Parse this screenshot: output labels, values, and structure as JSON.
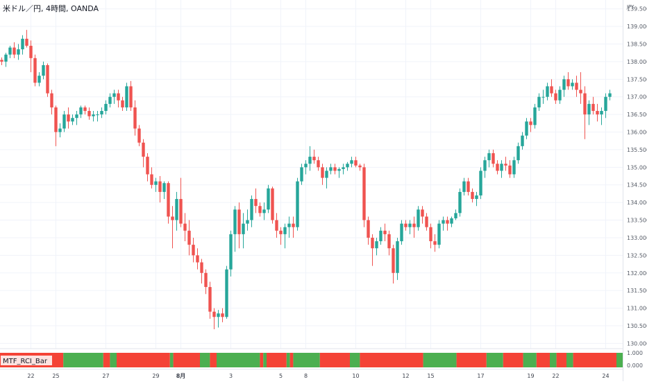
{
  "chart_data": {
    "type": "candlestick",
    "title": "米ドル／円, 4時間, OANDA",
    "currency": "JPY",
    "y_ticks": [
      "139.500",
      "139.000",
      "138.500",
      "138.000",
      "137.500",
      "137.000",
      "136.500",
      "136.000",
      "135.500",
      "135.000",
      "134.500",
      "134.000",
      "133.500",
      "133.000",
      "132.500",
      "132.000",
      "131.500",
      "131.000",
      "130.500",
      "130.000"
    ],
    "ylim": [
      129.85,
      139.75
    ],
    "x_ticks": [
      {
        "label": "22",
        "index": 7,
        "bold": false
      },
      {
        "label": "25",
        "index": 13,
        "bold": false
      },
      {
        "label": "27",
        "index": 25,
        "bold": false
      },
      {
        "label": "29",
        "index": 37,
        "bold": false
      },
      {
        "label": "8月",
        "index": 43,
        "bold": true
      },
      {
        "label": "3",
        "index": 55,
        "bold": false
      },
      {
        "label": "5",
        "index": 67,
        "bold": false
      },
      {
        "label": "8",
        "index": 73,
        "bold": false
      },
      {
        "label": "10",
        "index": 85,
        "bold": false
      },
      {
        "label": "12",
        "index": 97,
        "bold": false
      },
      {
        "label": "15",
        "index": 103,
        "bold": false
      },
      {
        "label": "17",
        "index": 115,
        "bold": false
      },
      {
        "label": "19",
        "index": 127,
        "bold": false
      },
      {
        "label": "22",
        "index": 133,
        "bold": false
      },
      {
        "label": "24",
        "index": 145,
        "bold": false
      }
    ],
    "colors": {
      "up": "#26a69a",
      "down": "#ef5350",
      "ind_up": "#4caf50",
      "ind_down": "#f44336",
      "grid": "#f0f3fa",
      "text": "#131722"
    },
    "candles": [
      [
        138.05,
        138.12,
        137.9,
        138.0
      ],
      [
        138.0,
        138.25,
        137.85,
        138.2
      ],
      [
        138.2,
        138.45,
        138.1,
        138.4
      ],
      [
        138.4,
        138.55,
        138.1,
        138.2
      ],
      [
        138.2,
        138.5,
        138.05,
        138.35
      ],
      [
        138.35,
        138.75,
        138.2,
        138.65
      ],
      [
        138.65,
        138.9,
        138.4,
        138.45
      ],
      [
        138.45,
        138.6,
        137.7,
        138.1
      ],
      [
        138.1,
        138.2,
        137.3,
        137.4
      ],
      [
        137.4,
        137.7,
        137.3,
        137.6
      ],
      [
        137.6,
        138.0,
        137.5,
        137.9
      ],
      [
        137.9,
        137.95,
        137.0,
        137.1
      ],
      [
        137.1,
        137.2,
        136.5,
        136.7
      ],
      [
        136.7,
        136.75,
        135.6,
        136.0
      ],
      [
        136.0,
        136.25,
        135.85,
        136.1
      ],
      [
        136.1,
        136.6,
        136.0,
        136.5
      ],
      [
        136.5,
        136.7,
        136.1,
        136.3
      ],
      [
        136.3,
        136.5,
        136.2,
        136.4
      ],
      [
        136.4,
        136.6,
        136.2,
        136.5
      ],
      [
        136.5,
        136.75,
        136.4,
        136.7
      ],
      [
        136.7,
        136.75,
        136.5,
        136.6
      ],
      [
        136.6,
        136.7,
        136.35,
        136.45
      ],
      [
        136.45,
        136.6,
        136.3,
        136.5
      ],
      [
        136.5,
        136.6,
        136.3,
        136.5
      ],
      [
        136.5,
        136.7,
        136.4,
        136.6
      ],
      [
        136.6,
        136.9,
        136.5,
        136.8
      ],
      [
        136.8,
        137.1,
        136.7,
        137.0
      ],
      [
        137.0,
        137.2,
        136.8,
        137.1
      ],
      [
        137.1,
        137.2,
        136.7,
        136.9
      ],
      [
        136.9,
        137.0,
        136.6,
        136.7
      ],
      [
        136.7,
        137.4,
        136.6,
        137.3
      ],
      [
        137.3,
        137.45,
        136.6,
        136.7
      ],
      [
        136.7,
        136.9,
        135.9,
        136.1
      ],
      [
        136.1,
        136.2,
        135.6,
        135.7
      ],
      [
        135.7,
        135.8,
        135.0,
        135.3
      ],
      [
        135.3,
        135.4,
        134.6,
        134.8
      ],
      [
        134.8,
        135.0,
        134.4,
        134.5
      ],
      [
        134.5,
        134.7,
        134.3,
        134.6
      ],
      [
        134.6,
        134.75,
        134.0,
        134.3
      ],
      [
        134.3,
        134.6,
        134.1,
        134.55
      ],
      [
        134.55,
        134.6,
        133.4,
        133.6
      ],
      [
        133.6,
        133.9,
        132.7,
        133.5
      ],
      [
        133.5,
        134.3,
        133.2,
        134.1
      ],
      [
        134.1,
        134.7,
        133.3,
        133.4
      ],
      [
        133.4,
        133.7,
        132.9,
        133.2
      ],
      [
        133.2,
        133.5,
        132.5,
        132.8
      ],
      [
        132.8,
        133.0,
        132.3,
        132.5
      ],
      [
        132.5,
        132.7,
        132.1,
        132.3
      ],
      [
        132.3,
        132.4,
        131.7,
        132.0
      ],
      [
        132.0,
        132.1,
        131.4,
        131.6
      ],
      [
        131.6,
        131.75,
        130.7,
        130.9
      ],
      [
        130.9,
        131.0,
        130.4,
        130.75
      ],
      [
        130.75,
        130.95,
        130.45,
        130.85
      ],
      [
        130.85,
        131.0,
        130.6,
        130.75
      ],
      [
        130.75,
        132.2,
        130.7,
        132.1
      ],
      [
        132.1,
        133.2,
        131.9,
        133.1
      ],
      [
        133.1,
        133.9,
        132.6,
        133.8
      ],
      [
        133.8,
        134.0,
        132.7,
        133.1
      ],
      [
        133.1,
        133.7,
        132.7,
        133.4
      ],
      [
        133.4,
        133.8,
        133.2,
        133.5
      ],
      [
        133.5,
        134.2,
        133.3,
        134.1
      ],
      [
        134.1,
        134.4,
        133.7,
        133.9
      ],
      [
        133.9,
        134.0,
        133.6,
        133.7
      ],
      [
        133.7,
        134.0,
        133.5,
        133.8
      ],
      [
        133.8,
        134.5,
        133.7,
        134.4
      ],
      [
        134.4,
        134.45,
        133.4,
        133.5
      ],
      [
        133.5,
        133.7,
        133.0,
        133.2
      ],
      [
        133.2,
        133.3,
        132.8,
        133.1
      ],
      [
        133.1,
        133.4,
        132.7,
        133.3
      ],
      [
        133.3,
        133.6,
        133.0,
        133.4
      ],
      [
        133.4,
        133.6,
        133.0,
        133.3
      ],
      [
        133.3,
        134.7,
        133.2,
        134.6
      ],
      [
        134.6,
        135.1,
        134.5,
        135.0
      ],
      [
        135.0,
        135.2,
        134.8,
        135.1
      ],
      [
        135.1,
        135.6,
        134.9,
        135.3
      ],
      [
        135.3,
        135.5,
        135.1,
        135.2
      ],
      [
        135.2,
        135.3,
        134.9,
        135.0
      ],
      [
        135.0,
        135.1,
        134.5,
        134.7
      ],
      [
        134.7,
        135.0,
        134.4,
        134.9
      ],
      [
        134.9,
        135.1,
        134.8,
        135.0
      ],
      [
        135.0,
        135.1,
        134.8,
        134.9
      ],
      [
        134.9,
        135.0,
        134.7,
        134.95
      ],
      [
        134.95,
        135.1,
        134.8,
        135.0
      ],
      [
        135.0,
        135.15,
        134.9,
        135.1
      ],
      [
        135.1,
        135.3,
        135.0,
        135.2
      ],
      [
        135.2,
        135.3,
        135.0,
        135.05
      ],
      [
        135.05,
        135.1,
        134.9,
        135.0
      ],
      [
        135.0,
        135.1,
        133.3,
        133.5
      ],
      [
        133.5,
        133.6,
        132.8,
        133.0
      ],
      [
        133.0,
        133.1,
        132.2,
        132.7
      ],
      [
        132.7,
        133.0,
        132.5,
        132.9
      ],
      [
        132.9,
        133.3,
        132.8,
        133.2
      ],
      [
        133.2,
        133.4,
        132.9,
        133.1
      ],
      [
        133.1,
        133.2,
        132.5,
        132.7
      ],
      [
        132.7,
        132.8,
        131.7,
        132.0
      ],
      [
        132.0,
        133.0,
        131.8,
        132.9
      ],
      [
        132.9,
        133.5,
        132.8,
        133.4
      ],
      [
        133.4,
        133.5,
        133.2,
        133.3
      ],
      [
        133.3,
        133.5,
        133.1,
        133.4
      ],
      [
        133.4,
        133.6,
        133.0,
        133.3
      ],
      [
        133.3,
        133.9,
        133.2,
        133.8
      ],
      [
        133.8,
        133.9,
        133.4,
        133.6
      ],
      [
        133.6,
        133.7,
        133.2,
        133.3
      ],
      [
        133.3,
        133.4,
        132.7,
        132.9
      ],
      [
        132.9,
        133.1,
        132.6,
        132.8
      ],
      [
        132.8,
        133.5,
        132.7,
        133.4
      ],
      [
        133.4,
        133.6,
        133.2,
        133.5
      ],
      [
        133.5,
        133.6,
        133.2,
        133.4
      ],
      [
        133.4,
        133.6,
        133.3,
        133.55
      ],
      [
        133.55,
        133.8,
        133.5,
        133.7
      ],
      [
        133.7,
        134.4,
        133.6,
        134.3
      ],
      [
        134.3,
        134.7,
        134.2,
        134.6
      ],
      [
        134.6,
        134.7,
        134.2,
        134.3
      ],
      [
        134.3,
        134.4,
        134.0,
        134.1
      ],
      [
        134.1,
        134.3,
        133.9,
        134.2
      ],
      [
        134.2,
        135.0,
        134.1,
        134.9
      ],
      [
        134.9,
        135.3,
        134.7,
        135.2
      ],
      [
        135.2,
        135.5,
        135.0,
        135.4
      ],
      [
        135.4,
        135.5,
        135.0,
        135.1
      ],
      [
        135.1,
        135.2,
        134.8,
        134.9
      ],
      [
        134.9,
        135.2,
        134.7,
        135.1
      ],
      [
        135.1,
        135.3,
        134.9,
        135.05
      ],
      [
        135.05,
        135.2,
        134.7,
        134.8
      ],
      [
        134.8,
        135.3,
        134.7,
        135.2
      ],
      [
        135.2,
        135.7,
        135.1,
        135.6
      ],
      [
        135.6,
        136.0,
        135.5,
        135.9
      ],
      [
        135.9,
        136.4,
        135.8,
        136.3
      ],
      [
        136.3,
        136.4,
        136.0,
        136.2
      ],
      [
        136.2,
        136.8,
        136.1,
        136.7
      ],
      [
        136.7,
        137.1,
        136.6,
        137.0
      ],
      [
        137.0,
        137.2,
        136.8,
        137.0
      ],
      [
        137.0,
        137.4,
        136.9,
        137.3
      ],
      [
        137.3,
        137.5,
        137.0,
        137.1
      ],
      [
        137.1,
        137.2,
        136.8,
        136.9
      ],
      [
        136.9,
        137.3,
        136.8,
        137.2
      ],
      [
        137.2,
        137.6,
        137.0,
        137.5
      ],
      [
        137.5,
        137.7,
        137.2,
        137.3
      ],
      [
        137.3,
        137.5,
        137.2,
        137.4
      ],
      [
        137.4,
        137.6,
        137.0,
        137.2
      ],
      [
        137.2,
        137.7,
        136.8,
        137.1
      ],
      [
        137.1,
        137.3,
        135.8,
        136.5
      ],
      [
        136.5,
        136.9,
        136.2,
        136.8
      ],
      [
        136.8,
        137.0,
        136.5,
        136.6
      ],
      [
        136.6,
        136.8,
        136.3,
        136.5
      ],
      [
        136.5,
        136.7,
        136.2,
        136.6
      ],
      [
        136.6,
        137.1,
        136.4,
        137.0
      ],
      [
        137.0,
        137.2,
        136.9,
        137.1
      ]
    ],
    "indicator": {
      "name": "MTF_RCI_Bar",
      "y_ticks": [
        "1.000",
        "0.000"
      ],
      "segments": [
        [
          "down",
          0,
          19
        ],
        [
          "up",
          19,
          31
        ],
        [
          "down",
          31,
          33
        ],
        [
          "up",
          33,
          35
        ],
        [
          "down",
          35,
          51
        ],
        [
          "up",
          51,
          52
        ],
        [
          "down",
          52,
          60
        ],
        [
          "up",
          60,
          63
        ],
        [
          "down",
          63,
          65
        ],
        [
          "up",
          65,
          78
        ],
        [
          "down",
          78,
          79
        ],
        [
          "up",
          79,
          80
        ],
        [
          "down",
          80,
          86
        ],
        [
          "up",
          86,
          87
        ],
        [
          "down",
          87,
          88
        ],
        [
          "up",
          88,
          96
        ],
        [
          "down",
          96,
          105
        ],
        [
          "up",
          105,
          108
        ],
        [
          "down",
          108,
          127
        ],
        [
          "up",
          127,
          137
        ],
        [
          "down",
          137,
          146
        ],
        [
          "up",
          146,
          151
        ],
        [
          "down",
          151,
          157
        ],
        [
          "up",
          157,
          161
        ],
        [
          "down",
          161,
          165
        ],
        [
          "up",
          165,
          167
        ],
        [
          "down",
          167,
          170
        ],
        [
          "up",
          170,
          172
        ],
        [
          "down",
          172,
          185
        ],
        [
          "up",
          185,
          187
        ]
      ]
    }
  }
}
